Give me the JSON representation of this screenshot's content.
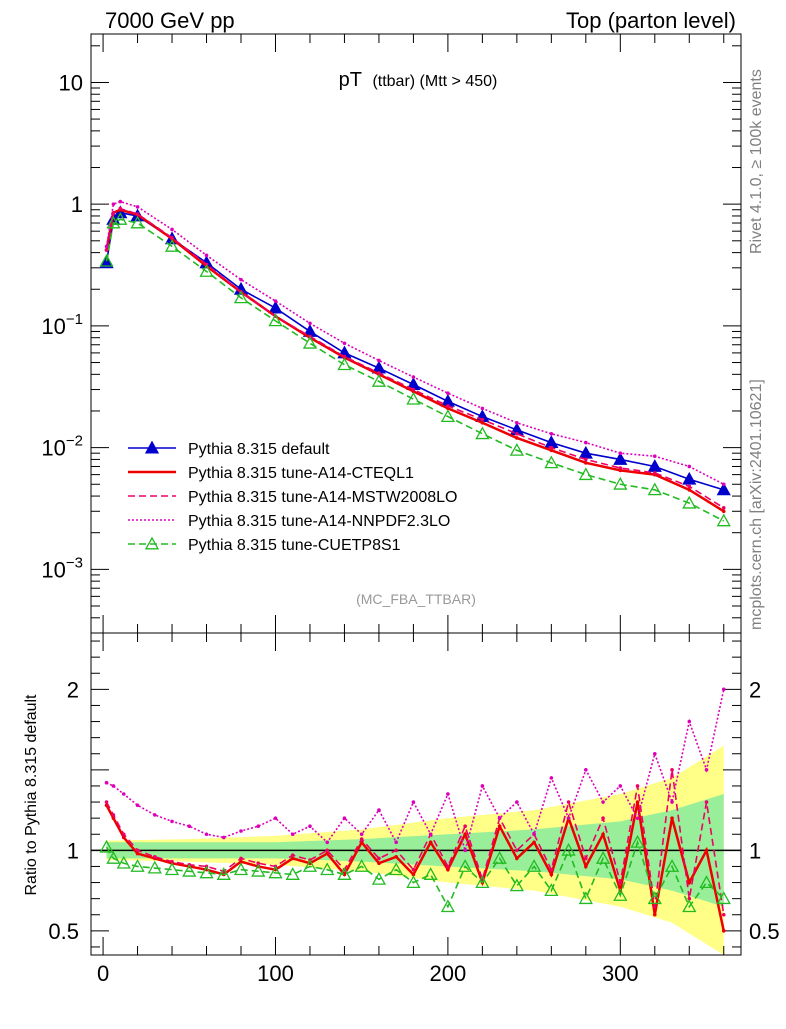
{
  "header": {
    "left": "7000 GeV pp",
    "right": "Top (parton level)"
  },
  "side_labels": {
    "rivet": "Rivet 4.1.0, ≥ 100k events",
    "mcplots": "mcplots.cern.ch [arXiv:2401.10621]"
  },
  "chart_data": [
    {
      "type": "line",
      "panel": "main",
      "title": "pT",
      "subtitle": "(ttbar) (Mtt > 450)",
      "analysis_label": "(MC_FBA_TTBAR)",
      "yscale": "log",
      "xlim": [
        -7,
        370
      ],
      "ylim": [
        0.0003,
        25
      ],
      "xticks": [
        0,
        100,
        200,
        300
      ],
      "yticks": [
        {
          "value": 10,
          "base": "10",
          "exp": ""
        },
        {
          "value": 1,
          "base": "1",
          "exp": ""
        },
        {
          "value": 0.1,
          "base": "10",
          "exp": "−1"
        },
        {
          "value": 0.01,
          "base": "10",
          "exp": "−2"
        },
        {
          "value": 0.001,
          "base": "10",
          "exp": "−3"
        }
      ],
      "legend_position": "lower-left",
      "series": [
        {
          "name": "Pythia 8.315 default",
          "color": "#0000cc",
          "style": "solid",
          "marker": "triangle-filled",
          "x": [
            2,
            6,
            10,
            20,
            40,
            60,
            80,
            100,
            120,
            140,
            160,
            180,
            200,
            220,
            240,
            260,
            280,
            300,
            320,
            340,
            360
          ],
          "y": [
            0.33,
            0.75,
            0.85,
            0.8,
            0.52,
            0.33,
            0.2,
            0.14,
            0.09,
            0.06,
            0.045,
            0.033,
            0.024,
            0.018,
            0.014,
            0.011,
            0.009,
            0.008,
            0.007,
            0.0055,
            0.0045
          ]
        },
        {
          "name": "Pythia 8.315 tune-A14-CTEQL1",
          "color": "#ee0000",
          "style": "solid",
          "marker": "none",
          "x": [
            2,
            6,
            10,
            20,
            40,
            60,
            80,
            100,
            120,
            140,
            160,
            180,
            200,
            220,
            240,
            260,
            280,
            300,
            320,
            340,
            360
          ],
          "y": [
            0.42,
            0.85,
            0.9,
            0.82,
            0.52,
            0.31,
            0.19,
            0.12,
            0.08,
            0.055,
            0.04,
            0.029,
            0.021,
            0.016,
            0.012,
            0.0095,
            0.0075,
            0.0065,
            0.006,
            0.0045,
            0.003
          ]
        },
        {
          "name": "Pythia 8.315 tune-A14-MSTW2008LO",
          "color": "#ee0066",
          "style": "dashed",
          "marker": "none",
          "x": [
            2,
            6,
            10,
            20,
            40,
            60,
            80,
            100,
            120,
            140,
            160,
            180,
            200,
            220,
            240,
            260,
            280,
            300,
            320,
            340,
            360
          ],
          "y": [
            0.42,
            0.85,
            0.92,
            0.83,
            0.53,
            0.32,
            0.19,
            0.12,
            0.082,
            0.056,
            0.041,
            0.03,
            0.022,
            0.017,
            0.013,
            0.01,
            0.008,
            0.0068,
            0.0062,
            0.0048,
            0.0032
          ]
        },
        {
          "name": "Pythia 8.315 tune-A14-NNPDF2.3LO",
          "color": "#dd00bb",
          "style": "dotted",
          "marker": "none",
          "x": [
            2,
            6,
            10,
            20,
            40,
            60,
            80,
            100,
            120,
            140,
            160,
            180,
            200,
            220,
            240,
            260,
            280,
            300,
            320,
            340,
            360
          ],
          "y": [
            0.45,
            1.0,
            1.05,
            0.95,
            0.62,
            0.38,
            0.24,
            0.16,
            0.105,
            0.072,
            0.052,
            0.038,
            0.028,
            0.021,
            0.016,
            0.013,
            0.011,
            0.009,
            0.0085,
            0.007,
            0.005
          ]
        },
        {
          "name": "Pythia 8.315 tune-CUETP8S1",
          "color": "#22bb22",
          "style": "dashed",
          "marker": "triangle-open",
          "x": [
            2,
            6,
            10,
            20,
            40,
            60,
            80,
            100,
            120,
            140,
            160,
            180,
            200,
            220,
            240,
            260,
            280,
            300,
            320,
            340,
            360
          ],
          "y": [
            0.34,
            0.7,
            0.75,
            0.7,
            0.45,
            0.28,
            0.17,
            0.11,
            0.072,
            0.048,
            0.035,
            0.025,
            0.018,
            0.013,
            0.0095,
            0.0075,
            0.006,
            0.005,
            0.0045,
            0.0035,
            0.0025
          ]
        }
      ]
    },
    {
      "type": "line",
      "panel": "ratio",
      "ylabel": "Ratio to Pythia 8.315 default",
      "xlim": [
        -7,
        370
      ],
      "ylim": [
        0.35,
        2.35
      ],
      "xticks": [
        0,
        100,
        200,
        300
      ],
      "xtick_labels": [
        "0",
        "100",
        "200",
        "300"
      ],
      "yticks": [
        0.5,
        1,
        2
      ],
      "ytick_labels": [
        "0.5",
        "1",
        "2"
      ],
      "reference": 1,
      "band_x": [
        2,
        50,
        100,
        150,
        200,
        250,
        300,
        330,
        360
      ],
      "band_inner": [
        0.05,
        0.05,
        0.05,
        0.07,
        0.1,
        0.13,
        0.18,
        0.25,
        0.35
      ],
      "band_outer": [
        0.06,
        0.07,
        0.09,
        0.13,
        0.2,
        0.25,
        0.35,
        0.45,
        0.65
      ],
      "series": [
        {
          "name": "Pythia 8.315 tune-A14-CTEQL1",
          "color": "#ee0000",
          "x": [
            2,
            6,
            12,
            20,
            30,
            40,
            50,
            60,
            70,
            80,
            90,
            100,
            110,
            120,
            130,
            140,
            150,
            160,
            170,
            180,
            190,
            200,
            210,
            220,
            230,
            240,
            250,
            260,
            270,
            280,
            290,
            300,
            310,
            320,
            330,
            340,
            350,
            360
          ],
          "y": [
            1.28,
            1.2,
            1.08,
            0.98,
            0.95,
            0.92,
            0.9,
            0.88,
            0.85,
            0.93,
            0.9,
            0.88,
            0.95,
            0.92,
            0.98,
            0.85,
            1.05,
            0.92,
            0.96,
            0.85,
            1.05,
            0.88,
            1.1,
            0.8,
            1.15,
            0.95,
            1.05,
            0.85,
            1.2,
            0.9,
            1.1,
            0.75,
            1.3,
            0.6,
            1.2,
            0.8,
            1.0,
            0.5
          ]
        },
        {
          "name": "Pythia 8.315 tune-A14-MSTW2008LO",
          "color": "#ee0066",
          "x": [
            2,
            6,
            12,
            20,
            30,
            40,
            50,
            60,
            70,
            80,
            90,
            100,
            110,
            120,
            130,
            140,
            150,
            160,
            170,
            180,
            190,
            200,
            210,
            220,
            230,
            240,
            250,
            260,
            270,
            280,
            290,
            300,
            310,
            320,
            330,
            340,
            350,
            360
          ],
          "y": [
            1.3,
            1.22,
            1.1,
            1.0,
            0.96,
            0.93,
            0.91,
            0.9,
            0.87,
            0.95,
            0.92,
            0.9,
            0.97,
            0.94,
            1.0,
            0.88,
            1.07,
            0.95,
            1.0,
            0.88,
            1.1,
            0.9,
            1.15,
            0.82,
            1.2,
            1.0,
            1.1,
            0.88,
            1.3,
            0.95,
            1.2,
            0.8,
            1.4,
            0.65,
            1.5,
            0.7,
            1.3,
            0.6
          ]
        },
        {
          "name": "Pythia 8.315 tune-A14-NNPDF2.3LO",
          "color": "#dd00bb",
          "x": [
            2,
            6,
            12,
            20,
            30,
            40,
            50,
            60,
            70,
            80,
            90,
            100,
            110,
            120,
            130,
            140,
            150,
            160,
            170,
            180,
            190,
            200,
            210,
            220,
            230,
            240,
            250,
            260,
            270,
            280,
            290,
            300,
            310,
            320,
            330,
            340,
            350,
            360
          ],
          "y": [
            1.42,
            1.4,
            1.35,
            1.28,
            1.22,
            1.18,
            1.15,
            1.1,
            1.08,
            1.12,
            1.15,
            1.2,
            1.1,
            1.15,
            1.05,
            1.2,
            1.1,
            1.25,
            1.05,
            1.3,
            1.1,
            1.35,
            1.0,
            1.4,
            1.2,
            1.3,
            1.1,
            1.45,
            1.2,
            1.5,
            1.3,
            1.4,
            1.2,
            1.6,
            1.3,
            1.8,
            1.5,
            2.0
          ]
        },
        {
          "name": "Pythia 8.315 tune-CUETP8S1",
          "color": "#22bb22",
          "x": [
            2,
            6,
            12,
            20,
            30,
            40,
            50,
            60,
            70,
            80,
            90,
            100,
            110,
            120,
            130,
            140,
            150,
            160,
            170,
            180,
            190,
            200,
            210,
            220,
            230,
            240,
            250,
            260,
            270,
            280,
            290,
            300,
            310,
            320,
            330,
            340,
            350,
            360
          ],
          "y": [
            1.02,
            0.95,
            0.92,
            0.9,
            0.89,
            0.88,
            0.87,
            0.86,
            0.85,
            0.88,
            0.87,
            0.86,
            0.85,
            0.9,
            0.88,
            0.85,
            0.9,
            0.82,
            0.88,
            0.8,
            0.85,
            0.65,
            0.9,
            0.8,
            0.95,
            0.78,
            0.9,
            0.75,
            1.0,
            0.7,
            0.95,
            0.72,
            1.05,
            0.7,
            0.9,
            0.65,
            0.8,
            0.7
          ]
        }
      ]
    }
  ]
}
